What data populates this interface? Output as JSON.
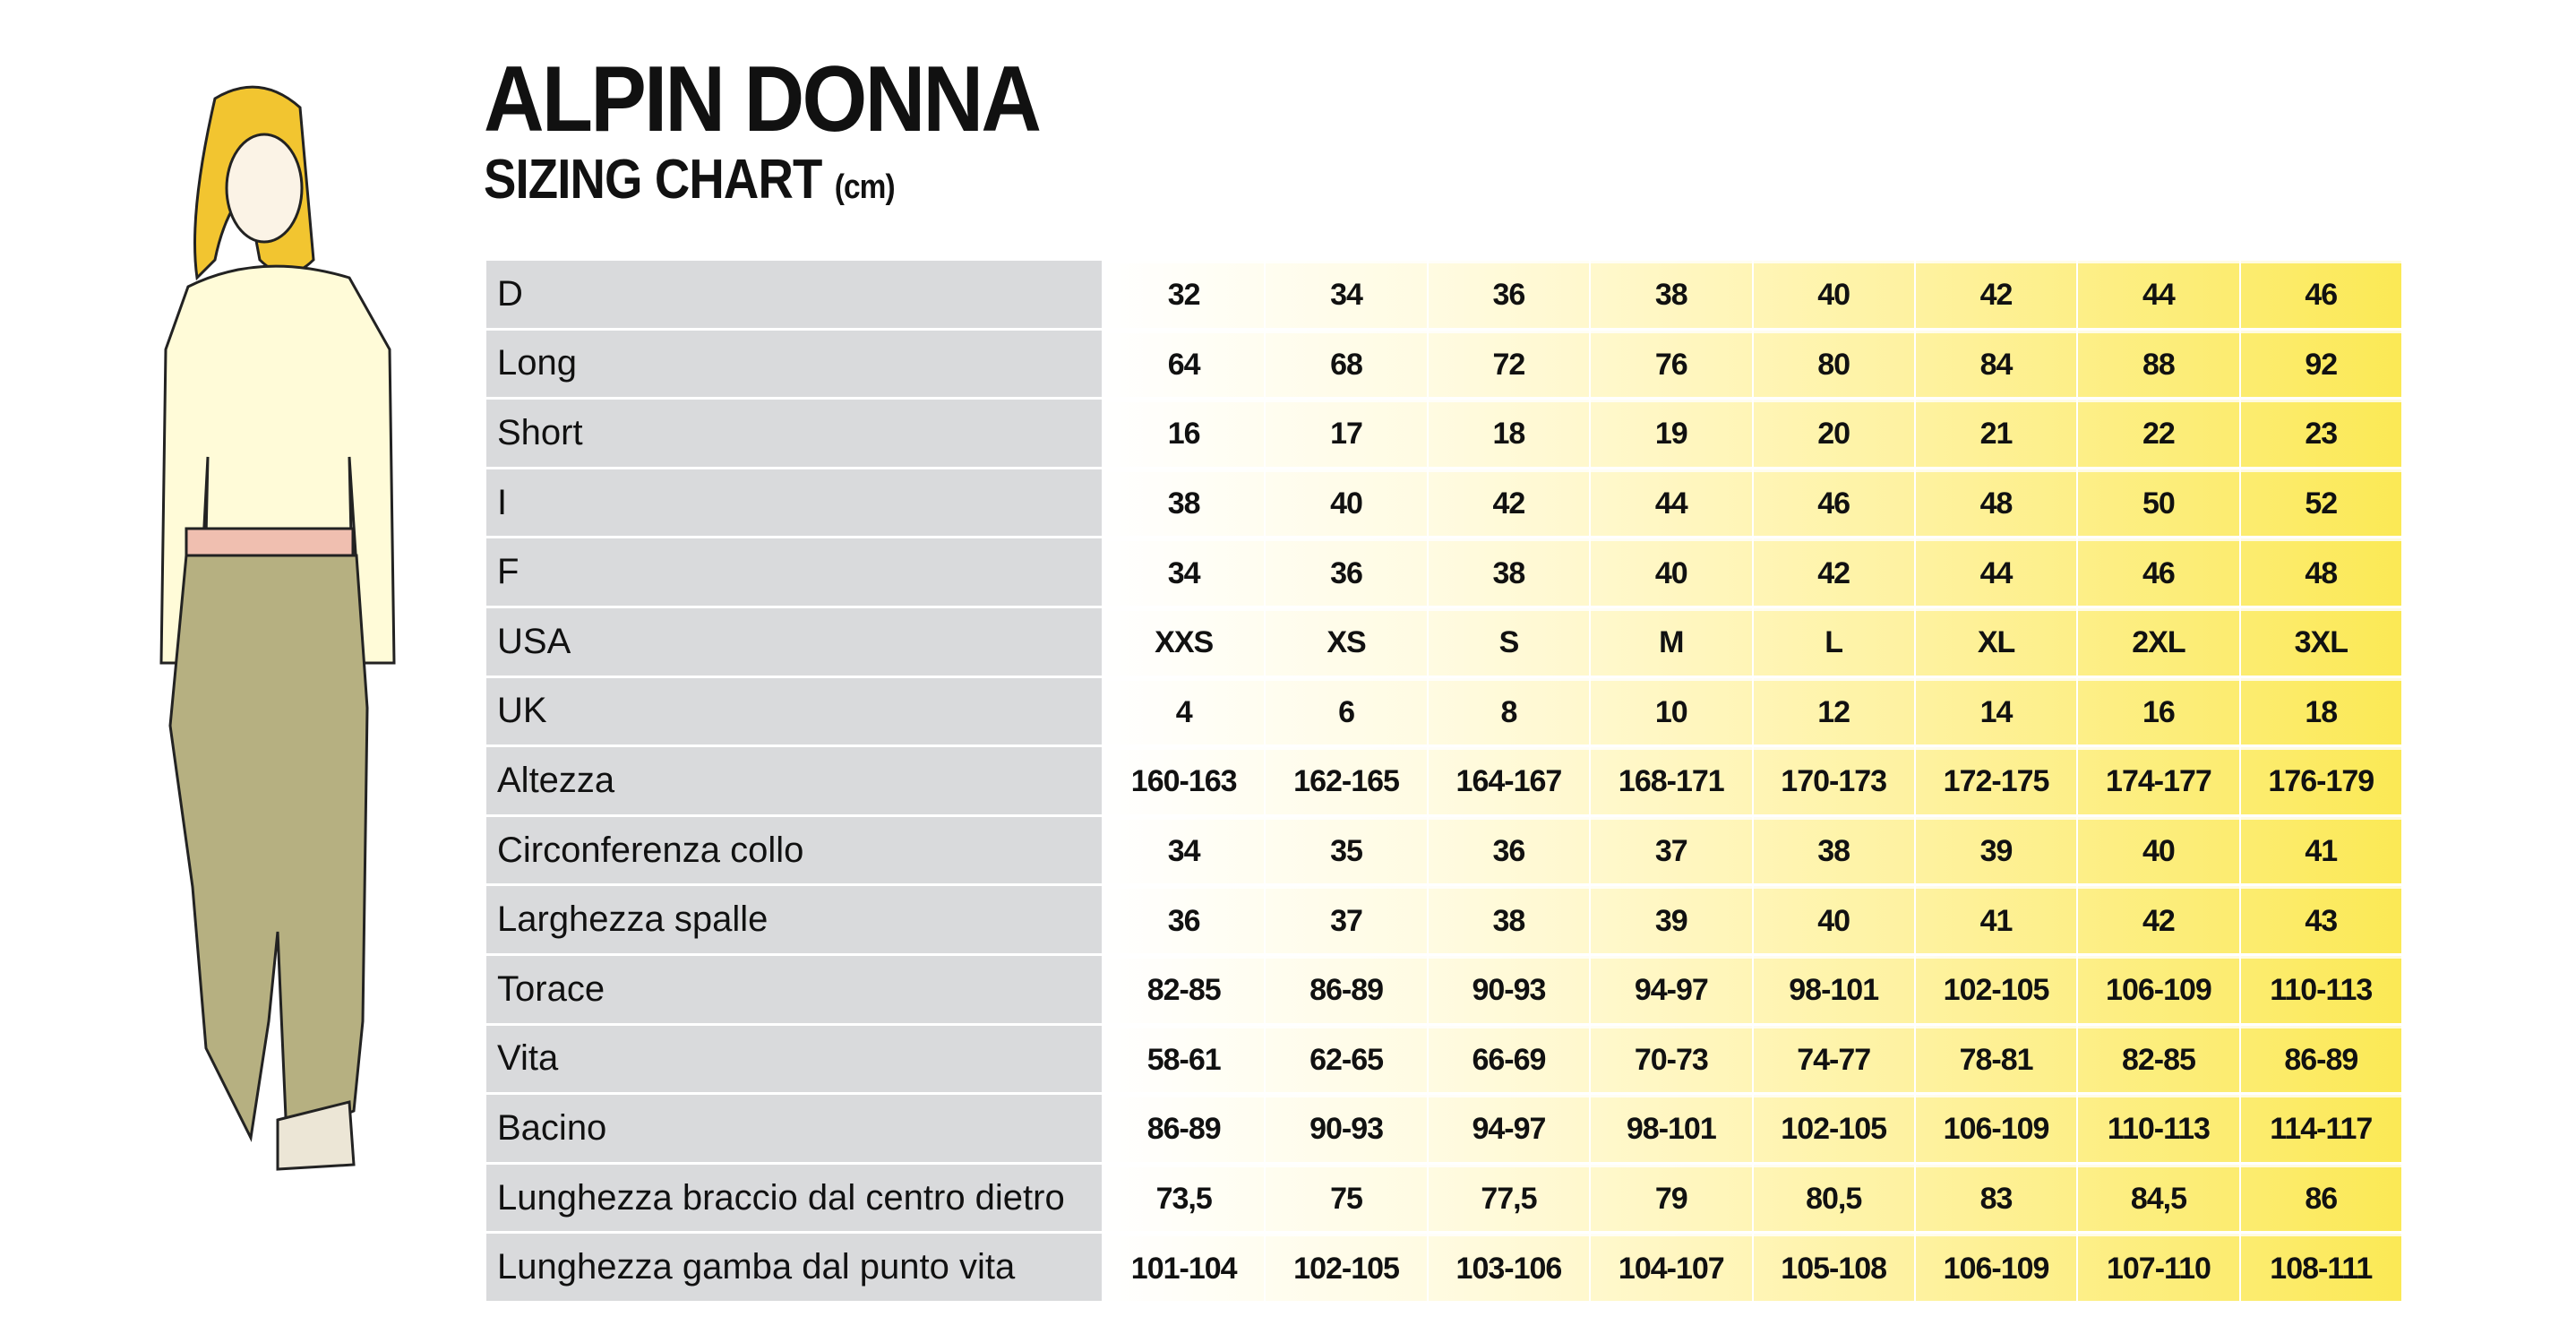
{
  "header": {
    "title": "ALPIN DONNA",
    "subtitle": "SIZING CHART",
    "unit": "(cm)"
  },
  "table": {
    "rows": [
      {
        "label": "D",
        "values": [
          32,
          34,
          36,
          38,
          40,
          42,
          44,
          46
        ]
      },
      {
        "label": "Long",
        "values": [
          64,
          68,
          72,
          76,
          80,
          84,
          88,
          92
        ]
      },
      {
        "label": "Short",
        "values": [
          16,
          17,
          18,
          19,
          20,
          21,
          22,
          23
        ]
      },
      {
        "label": "I",
        "values": [
          38,
          40,
          42,
          44,
          46,
          48,
          50,
          52
        ]
      },
      {
        "label": "F",
        "values": [
          34,
          36,
          38,
          40,
          42,
          44,
          46,
          48
        ]
      },
      {
        "label": "USA",
        "values": [
          "XXS",
          "XS",
          "S",
          "M",
          "L",
          "XL",
          "2XL",
          "3XL"
        ]
      },
      {
        "label": "UK",
        "values": [
          4,
          6,
          8,
          10,
          12,
          14,
          16,
          18
        ]
      },
      {
        "label": "Altezza",
        "values": [
          "160-163",
          "162-165",
          "164-167",
          "168-171",
          "170-173",
          "172-175",
          "174-177",
          "176-179"
        ]
      },
      {
        "label": "Circonferenza collo",
        "values": [
          34,
          35,
          36,
          37,
          38,
          39,
          40,
          41
        ]
      },
      {
        "label": "Larghezza spalle",
        "values": [
          36,
          37,
          38,
          39,
          40,
          41,
          42,
          43
        ]
      },
      {
        "label": "Torace",
        "values": [
          "82-85",
          "86-89",
          "90-93",
          "94-97",
          "98-101",
          "102-105",
          "106-109",
          "110-113"
        ]
      },
      {
        "label": "Vita",
        "values": [
          "58-61",
          "62-65",
          "66-69",
          "70-73",
          "74-77",
          "78-81",
          "82-85",
          "86-89"
        ]
      },
      {
        "label": "Bacino",
        "values": [
          "86-89",
          "90-93",
          "94-97",
          "98-101",
          "102-105",
          "106-109",
          "110-113",
          "114-117"
        ]
      },
      {
        "label": "Lunghezza braccio dal centro dietro",
        "values": [
          "73,5",
          75,
          "77,5",
          79,
          "80,5",
          83,
          "84,5",
          86
        ]
      },
      {
        "label": "Lunghezza gamba dal punto vita",
        "values": [
          "101-104",
          "102-105",
          "103-106",
          "104-107",
          "105-108",
          "106-109",
          "107-110",
          "108-111"
        ]
      }
    ]
  }
}
